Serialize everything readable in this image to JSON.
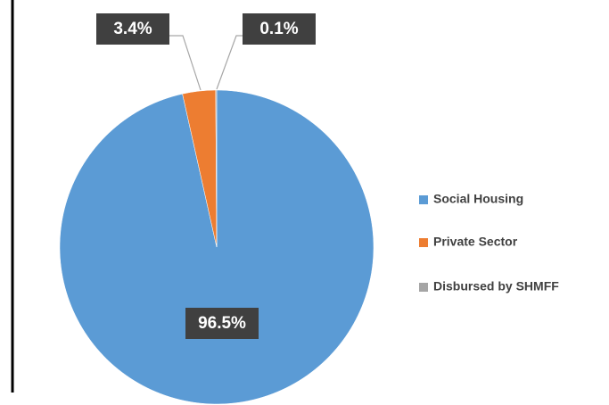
{
  "chart_data": {
    "type": "pie",
    "categories": [
      "Social Housing",
      "Private Sector",
      "Disbursed by SHMFF"
    ],
    "values": [
      96.5,
      3.4,
      0.1
    ],
    "value_labels": [
      "96.5%",
      "3.4%",
      "0.1%"
    ],
    "colors": [
      "#5b9bd5",
      "#ed7d31",
      "#a5a5a5"
    ],
    "legend": "right"
  }
}
